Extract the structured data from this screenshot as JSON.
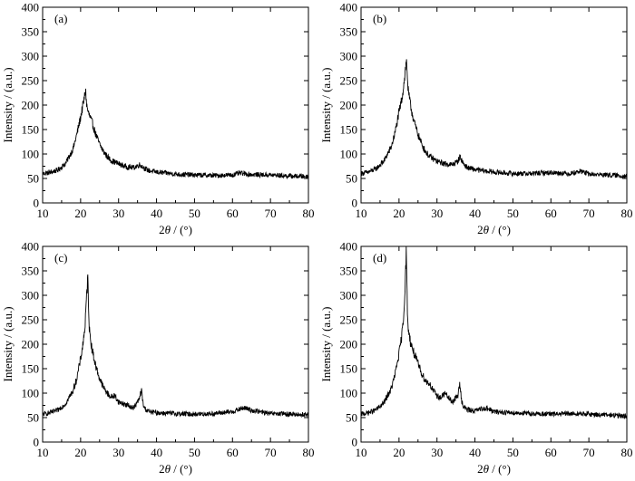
{
  "chart_data": [
    {
      "type": "line",
      "panel_label": "(a)",
      "xlabel_prefix": "2",
      "xlabel_theta": "θ",
      "xlabel_suffix": " / (°)",
      "ylabel": "Intensity / (a.u.)",
      "xlim": [
        10,
        80
      ],
      "ylim": [
        0,
        400
      ],
      "x_ticks": [
        "10",
        "20",
        "30",
        "40",
        "50",
        "60",
        "70",
        "80"
      ],
      "y_ticks": [
        "0",
        "50",
        "100",
        "150",
        "200",
        "250",
        "300",
        "350",
        "400"
      ],
      "grid": false,
      "color": "#000000",
      "series": [
        {
          "x": [
            10,
            12,
            14,
            16,
            18,
            19,
            20,
            20.5,
            21,
            21.3,
            21.6,
            22,
            23,
            24,
            25,
            26,
            27,
            28,
            30,
            32,
            34,
            35.5,
            36,
            37,
            38,
            40,
            45,
            50,
            55,
            60,
            62,
            65,
            70,
            75,
            80
          ],
          "y": [
            60,
            62,
            67,
            80,
            110,
            140,
            175,
            195,
            215,
            232,
            200,
            185,
            165,
            140,
            120,
            105,
            95,
            87,
            80,
            74,
            72,
            78,
            76,
            70,
            66,
            63,
            59,
            57,
            56,
            57,
            61,
            58,
            57,
            55,
            54
          ]
        }
      ]
    },
    {
      "type": "line",
      "panel_label": "(b)",
      "xlabel_prefix": "2",
      "xlabel_theta": "θ",
      "xlabel_suffix": " / (°)",
      "ylabel": "Intensity / (a.u.)",
      "xlim": [
        10,
        80
      ],
      "ylim": [
        0,
        400
      ],
      "x_ticks": [
        "10",
        "20",
        "30",
        "40",
        "50",
        "60",
        "70",
        "80"
      ],
      "y_ticks": [
        "0",
        "50",
        "100",
        "150",
        "200",
        "250",
        "300",
        "350",
        "400"
      ],
      "grid": false,
      "color": "#000000",
      "series": [
        {
          "x": [
            10,
            12,
            14,
            16,
            18,
            19,
            20,
            20.8,
            21.3,
            21.7,
            22,
            22.4,
            23,
            24,
            25,
            26,
            27,
            28,
            30,
            32,
            34,
            35.5,
            36,
            37,
            38,
            40,
            45,
            50,
            55,
            60,
            65,
            68,
            70,
            75,
            80
          ],
          "y": [
            60,
            63,
            70,
            85,
            115,
            145,
            185,
            215,
            245,
            275,
            290,
            230,
            200,
            165,
            140,
            120,
            105,
            95,
            85,
            80,
            78,
            85,
            95,
            80,
            72,
            68,
            63,
            60,
            60,
            62,
            60,
            65,
            59,
            57,
            55
          ]
        }
      ]
    },
    {
      "type": "line",
      "panel_label": "(c)",
      "xlabel_prefix": "2",
      "xlabel_theta": "θ",
      "xlabel_suffix": " / (°)",
      "ylabel": "Intensity / (a.u.)",
      "xlim": [
        10,
        80
      ],
      "ylim": [
        0,
        400
      ],
      "x_ticks": [
        "10",
        "20",
        "30",
        "40",
        "50",
        "60",
        "70",
        "80"
      ],
      "y_ticks": [
        "0",
        "50",
        "100",
        "150",
        "200",
        "250",
        "300",
        "350",
        "400"
      ],
      "grid": false,
      "color": "#000000",
      "series": [
        {
          "x": [
            10,
            12,
            14,
            16,
            18,
            19,
            20,
            20.7,
            21.2,
            21.6,
            21.9,
            22.3,
            23,
            24,
            25,
            26,
            27,
            28,
            29,
            30,
            32,
            34,
            35.5,
            36,
            36.5,
            37,
            38,
            40,
            45,
            50,
            55,
            60,
            63,
            65,
            70,
            75,
            80
          ],
          "y": [
            57,
            60,
            65,
            78,
            105,
            130,
            170,
            205,
            240,
            300,
            335,
            230,
            190,
            155,
            130,
            112,
            100,
            92,
            95,
            82,
            76,
            70,
            88,
            108,
            75,
            68,
            62,
            60,
            58,
            57,
            58,
            62,
            70,
            65,
            58,
            57,
            56
          ]
        }
      ]
    },
    {
      "type": "line",
      "panel_label": "(d)",
      "xlabel_prefix": "2",
      "xlabel_theta": "θ",
      "xlabel_suffix": " / (°)",
      "ylabel": "Intensity / (a.u.)",
      "xlim": [
        10,
        80
      ],
      "ylim": [
        0,
        400
      ],
      "x_ticks": [
        "10",
        "20",
        "30",
        "40",
        "50",
        "60",
        "70",
        "80"
      ],
      "y_ticks": [
        "0",
        "50",
        "100",
        "150",
        "200",
        "250",
        "300",
        "350",
        "400"
      ],
      "grid": false,
      "color": "#000000",
      "series": [
        {
          "x": [
            10,
            12,
            14,
            16,
            18,
            19,
            20,
            20.7,
            21.2,
            21.6,
            21.9,
            22.3,
            23,
            24,
            25,
            26,
            27,
            28,
            29,
            30,
            31,
            32,
            34,
            35.5,
            36,
            36.5,
            37,
            38,
            40,
            43,
            45,
            50,
            55,
            60,
            65,
            70,
            75,
            80
          ],
          "y": [
            57,
            60,
            66,
            80,
            110,
            140,
            180,
            215,
            255,
            320,
            385,
            240,
            205,
            180,
            160,
            140,
            125,
            120,
            105,
            95,
            90,
            100,
            82,
            95,
            118,
            85,
            72,
            66,
            64,
            70,
            62,
            60,
            58,
            57,
            58,
            57,
            55,
            53
          ]
        }
      ]
    }
  ]
}
